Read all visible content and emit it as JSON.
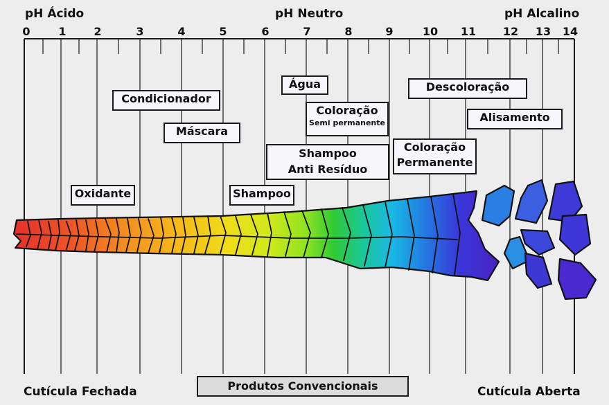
{
  "header": {
    "left": "pH Ácido",
    "center": "pH Neutro",
    "right": "pH Alcalino"
  },
  "scale": {
    "ticks": [
      "0",
      "1",
      "2",
      "3",
      "4",
      "5",
      "6",
      "7",
      "8",
      "9",
      "10",
      "11",
      "12",
      "13",
      "14"
    ]
  },
  "products": {
    "agua": "Água",
    "condicionador": "Condicionador",
    "descoloracao": "Descoloração",
    "coloracao": "Coloração",
    "coloracao_sub": "Semi permanente",
    "mascara": "Máscara",
    "alisamento": "Alisamento",
    "shampoo_anti_1": "Shampoo",
    "shampoo_anti_2": "Anti Resíduo",
    "coloracao_perm_1": "Coloração",
    "coloracao_perm_2": "Permanente",
    "oxidante": "Oxidante",
    "shampoo": "Shampoo"
  },
  "footer": {
    "left": "Cutícula Fechada",
    "center": "Produtos Convencionais",
    "right": "Cutícula Aberta"
  },
  "colors": {
    "gradient": [
      "#e5302a",
      "#ef6a22",
      "#f6a81a",
      "#f3d518",
      "#d8e81a",
      "#9ee81e",
      "#31c932",
      "#16c1a6",
      "#19b7e3",
      "#2479e0",
      "#3a2fd6",
      "#4a1fc2"
    ]
  }
}
